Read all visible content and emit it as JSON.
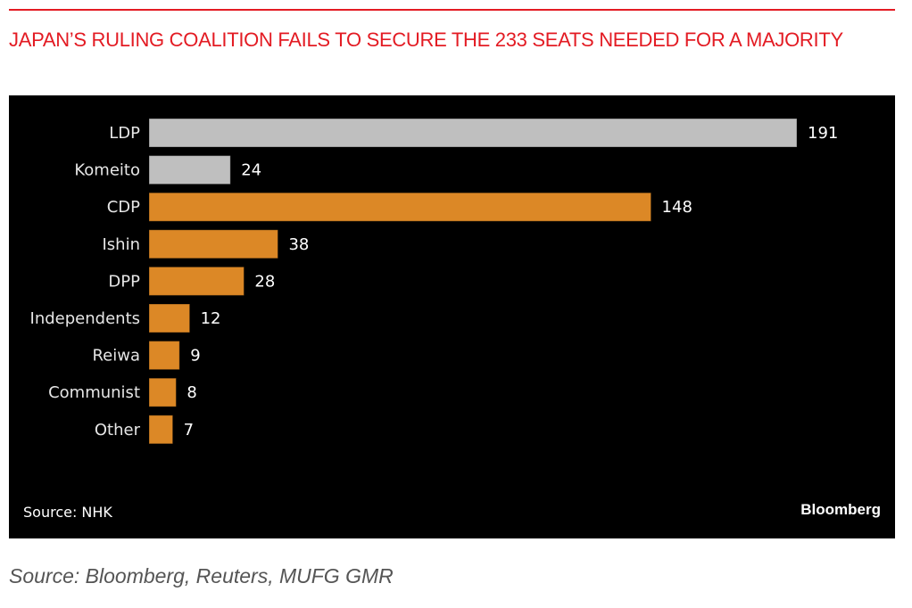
{
  "title": "JAPAN’S RULING COALITION FAILS TO SECURE THE 233 SEATS NEEDED FOR A MAJORITY",
  "panel": {
    "source_label": "Source: NHK",
    "brand": "Bloomberg"
  },
  "footer": {
    "source": "Source: Bloomberg, Reuters, MUFG GMR"
  },
  "colors": {
    "title": "#e31b23",
    "coalition": "#bfbfbf",
    "opposition": "#dc8826",
    "background": "#000000"
  },
  "chart_data": {
    "type": "bar",
    "orientation": "horizontal",
    "title": "JAPAN’S RULING COALITION FAILS TO SECURE THE 233 SEATS NEEDED FOR A MAJORITY",
    "xlabel": "",
    "ylabel": "",
    "categories": [
      "LDP",
      "Komeito",
      "CDP",
      "Ishin",
      "DPP",
      "Independents",
      "Reiwa",
      "Communist",
      "Other"
    ],
    "values": [
      191,
      24,
      148,
      38,
      28,
      12,
      9,
      8,
      7
    ],
    "groups": [
      "coalition",
      "coalition",
      "opposition",
      "opposition",
      "opposition",
      "opposition",
      "opposition",
      "opposition",
      "opposition"
    ],
    "xlim": [
      0,
      191
    ],
    "grid": false,
    "legend": "none"
  }
}
